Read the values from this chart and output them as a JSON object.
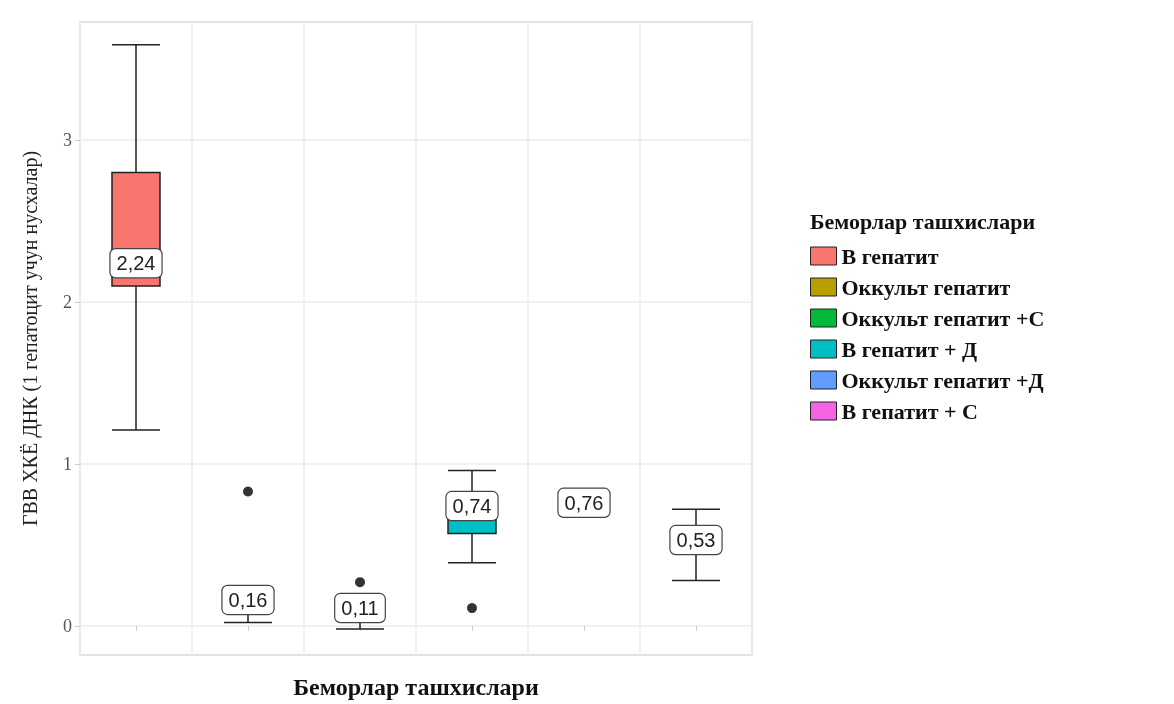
{
  "chart_data": {
    "type": "box",
    "xlabel": "Беморлар ташхислари",
    "ylabel": "ГВВ ХКЁ ДНК (1 гепатоцит учун нусхалар)",
    "legend_title": "Беморлар ташхислари",
    "categories": [
      null,
      null,
      null,
      null,
      null,
      null
    ],
    "ylim": [
      -0.18,
      3.73
    ],
    "yticks": [
      0,
      1,
      2,
      3
    ],
    "grid": true,
    "legend": "right",
    "series": [
      {
        "name": "В гепатит",
        "color": "#f8766d",
        "boxes": [
          {
            "low": 1.21,
            "q1": 2.1,
            "median": 2.24,
            "q3": 2.8,
            "high": 3.59
          },
          null,
          null,
          null,
          null,
          null
        ],
        "value_labels": [
          "2,24",
          null,
          null,
          null,
          null,
          null
        ]
      },
      {
        "name": "Оккульт гепатит",
        "color": "#b79f00",
        "boxes": [
          null,
          {
            "low": 0.02,
            "q1": 0.13,
            "median": 0.16,
            "q3": 0.19,
            "high": 0.21,
            "outliers": [
              0.83
            ]
          },
          null,
          null,
          null,
          null
        ],
        "value_labels": [
          null,
          "0,16",
          null,
          null,
          null,
          null
        ]
      },
      {
        "name": "Оккульт гепатит +С",
        "color": "#00ba38",
        "boxes": [
          null,
          null,
          {
            "low": -0.02,
            "q1": 0.08,
            "median": 0.11,
            "q3": 0.14,
            "high": 0.16,
            "outliers": [
              0.27
            ]
          },
          null,
          null,
          null
        ],
        "value_labels": [
          null,
          null,
          "0,11",
          null,
          null,
          null
        ]
      },
      {
        "name": "В гепатит + Д",
        "color": "#00bfc4",
        "boxes": [
          null,
          null,
          null,
          {
            "low": 0.39,
            "q1": 0.57,
            "median": 0.74,
            "q3": 0.8,
            "high": 0.96,
            "outliers": [
              0.11
            ]
          },
          null,
          null
        ],
        "value_labels": [
          null,
          null,
          null,
          "0,74",
          null,
          null
        ]
      },
      {
        "name": "Оккульт гепатит +Д",
        "color": "#619cff",
        "boxes": [
          null,
          null,
          null,
          null,
          {
            "low": 0.72,
            "q1": 0.74,
            "median": 0.76,
            "q3": 0.78,
            "high": 0.8
          },
          null
        ],
        "value_labels": [
          null,
          null,
          null,
          null,
          "0,76",
          null
        ]
      },
      {
        "name": "В гепатит + С",
        "color": "#f564e3",
        "boxes": [
          null,
          null,
          null,
          null,
          null,
          {
            "low": 0.28,
            "q1": 0.48,
            "median": 0.53,
            "q3": 0.59,
            "high": 0.72
          }
        ],
        "value_labels": [
          null,
          null,
          null,
          null,
          null,
          "0,53"
        ]
      }
    ]
  }
}
